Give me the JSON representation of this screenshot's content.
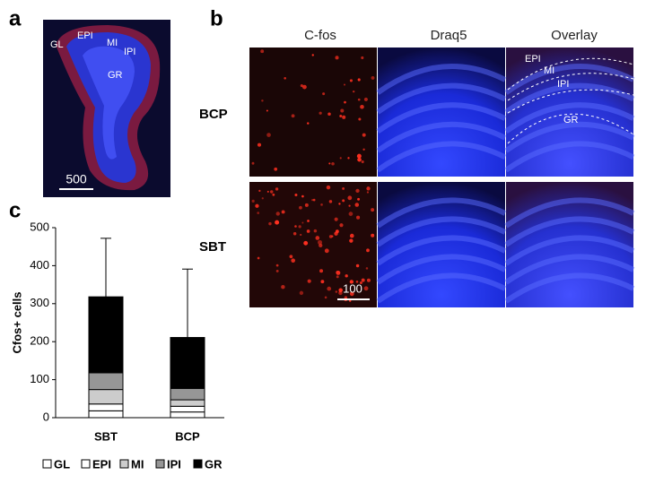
{
  "panel_labels": [
    "a",
    "b",
    "c"
  ],
  "panel_a": {
    "labels": [
      "GL",
      "EPI",
      "MI",
      "IPI",
      "GR"
    ],
    "scale": "500"
  },
  "panel_b": {
    "columns": [
      "C-fos",
      "Draq5",
      "Overlay"
    ],
    "rows": [
      "BCP",
      "SBT"
    ],
    "overlay_labels": [
      "EPI",
      "MI",
      "IPI",
      "GR"
    ],
    "scale": "100"
  },
  "chart_data": {
    "type": "stacked_bar",
    "y_label": "Cfos+ cells",
    "categories": [
      "SBT",
      "BCP"
    ],
    "series": [
      {
        "name": "GL",
        "color": "#ffffff",
        "values": [
          18,
          15
        ]
      },
      {
        "name": "EPI",
        "color": "#ffffff",
        "values": [
          18,
          15
        ]
      },
      {
        "name": "MI",
        "color": "#cccccc",
        "values": [
          38,
          17
        ]
      },
      {
        "name": "IPI",
        "color": "#969696",
        "values": [
          44,
          30
        ]
      },
      {
        "name": "GR",
        "color": "#000000",
        "values": [
          200,
          134
        ]
      }
    ],
    "errors": [
      154,
      180
    ],
    "ylim": [
      0,
      500
    ],
    "yticks": [
      0,
      100,
      200,
      300,
      400,
      500
    ]
  }
}
